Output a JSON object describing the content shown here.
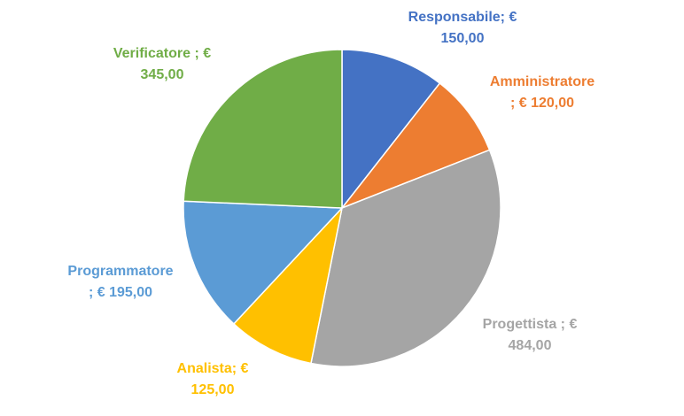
{
  "chart_data": {
    "type": "pie",
    "title": "",
    "slices": [
      {
        "name": "Responsabile",
        "value": 150,
        "label_lines": [
          "Responsabile; €",
          "150,00"
        ],
        "color": "#4472C4"
      },
      {
        "name": "Amministratore",
        "value": 120,
        "label_lines": [
          "Amministratore",
          "; € 120,00"
        ],
        "color": "#ED7D31"
      },
      {
        "name": "Progettista",
        "value": 484,
        "label_lines": [
          "Progettista ; €",
          "484,00"
        ],
        "color": "#A5A5A5"
      },
      {
        "name": "Analista",
        "value": 125,
        "label_lines": [
          "Analista; €",
          "125,00"
        ],
        "color": "#FFC000"
      },
      {
        "name": "Programmatore",
        "value": 195,
        "label_lines": [
          "Programmatore",
          "; € 195,00"
        ],
        "color": "#5B9BD5"
      },
      {
        "name": "Verificatore",
        "value": 345,
        "label_lines": [
          "Verificatore ; €",
          "345,00"
        ],
        "color": "#70AD47"
      }
    ]
  }
}
